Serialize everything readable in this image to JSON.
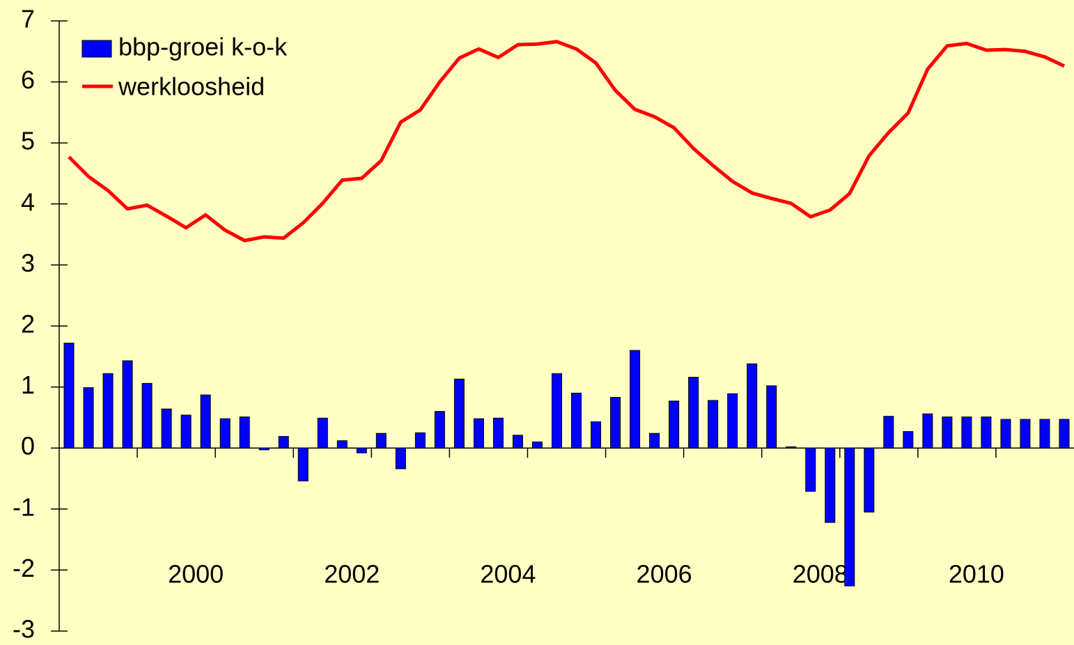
{
  "chart_data": {
    "type": "bar",
    "categories": [
      null,
      null,
      null,
      null,
      null,
      null,
      "2000",
      null,
      null,
      null,
      null,
      null,
      null,
      null,
      "2002",
      null,
      null,
      null,
      null,
      null,
      null,
      null,
      "2004",
      null,
      null,
      null,
      null,
      null,
      null,
      null,
      "2006",
      null,
      null,
      null,
      null,
      null,
      null,
      null,
      "2008",
      null,
      null,
      null,
      null,
      null,
      null,
      null,
      "2010",
      null,
      null,
      null,
      null,
      null
    ],
    "series": [
      {
        "name": "bbp-groei k-o-k",
        "type": "bar",
        "color": "#0000ff",
        "values": [
          1.72,
          0.99,
          1.22,
          1.43,
          1.06,
          0.64,
          0.54,
          0.87,
          0.48,
          0.51,
          -0.03,
          0.19,
          -0.54,
          0.49,
          0.12,
          -0.08,
          0.24,
          -0.34,
          0.25,
          0.6,
          1.13,
          0.48,
          0.49,
          0.21,
          0.1,
          1.22,
          0.9,
          0.43,
          0.83,
          1.6,
          0.24,
          0.77,
          1.16,
          0.78,
          0.89,
          1.38,
          1.02,
          0.02,
          -0.71,
          -1.22,
          -2.26,
          -1.05,
          0.52,
          0.27,
          0.56,
          0.51,
          0.51,
          0.51,
          0.47,
          0.47,
          0.47,
          0.47
        ]
      },
      {
        "name": "werkloosheid",
        "type": "line",
        "color": "#ff0000",
        "values": [
          4.77,
          4.45,
          4.22,
          3.92,
          3.98,
          3.8,
          3.61,
          3.82,
          3.57,
          3.4,
          3.46,
          3.44,
          3.69,
          4.01,
          4.39,
          4.42,
          4.71,
          5.34,
          5.54,
          6.0,
          6.39,
          6.54,
          6.4,
          6.61,
          6.62,
          6.66,
          6.54,
          6.31,
          5.86,
          5.55,
          5.43,
          5.25,
          4.91,
          4.63,
          4.37,
          4.18,
          4.09,
          4.01,
          3.79,
          3.9,
          4.17,
          4.79,
          5.17,
          5.49,
          6.21,
          6.59,
          6.63,
          6.52,
          6.53,
          6.5,
          6.41,
          6.26
        ]
      }
    ],
    "ylim": [
      -3,
      7
    ],
    "yticks": [
      -3,
      -2,
      -1,
      0,
      1,
      2,
      3,
      4,
      5,
      6,
      7
    ],
    "legend": "top-left"
  }
}
